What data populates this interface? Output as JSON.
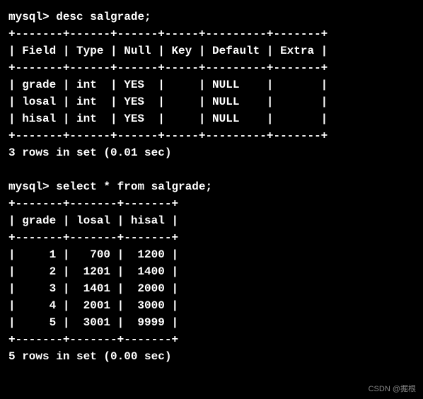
{
  "desc_query": {
    "prompt": "mysql> ",
    "command": "desc salgrade;",
    "columns": [
      "Field",
      "Type",
      "Null",
      "Key",
      "Default",
      "Extra"
    ],
    "rows": [
      {
        "field": "grade",
        "type": "int",
        "null": "YES",
        "key": "",
        "default": "NULL",
        "extra": ""
      },
      {
        "field": "losal",
        "type": "int",
        "null": "YES",
        "key": "",
        "default": "NULL",
        "extra": ""
      },
      {
        "field": "hisal",
        "type": "int",
        "null": "YES",
        "key": "",
        "default": "NULL",
        "extra": ""
      }
    ],
    "result_text": "3 rows in set (0.01 sec)",
    "border": "+-------+------+------+-----+---------+-------+",
    "header_row": "| Field | Type | Null | Key | Default | Extra |",
    "data_rows": [
      "| grade | int  | YES  |     | NULL    |       |",
      "| losal | int  | YES  |     | NULL    |       |",
      "| hisal | int  | YES  |     | NULL    |       |"
    ]
  },
  "select_query": {
    "prompt": "mysql> ",
    "command": "select * from salgrade;",
    "columns": [
      "grade",
      "losal",
      "hisal"
    ],
    "rows": [
      {
        "grade": 1,
        "losal": 700,
        "hisal": 1200
      },
      {
        "grade": 2,
        "losal": 1201,
        "hisal": 1400
      },
      {
        "grade": 3,
        "losal": 1401,
        "hisal": 2000
      },
      {
        "grade": 4,
        "losal": 2001,
        "hisal": 3000
      },
      {
        "grade": 5,
        "losal": 3001,
        "hisal": 9999
      }
    ],
    "result_text": "5 rows in set (0.00 sec)",
    "border": "+-------+-------+-------+",
    "header_row": "| grade | losal | hisal |",
    "data_rows": [
      "|     1 |   700 |  1200 |",
      "|     2 |  1201 |  1400 |",
      "|     3 |  1401 |  2000 |",
      "|     4 |  2001 |  3000 |",
      "|     5 |  3001 |  9999 |"
    ]
  },
  "watermark": "CSDN @掘根",
  "colors": {
    "background": "#000000",
    "text": "#ffffff",
    "watermark": "#888888"
  }
}
